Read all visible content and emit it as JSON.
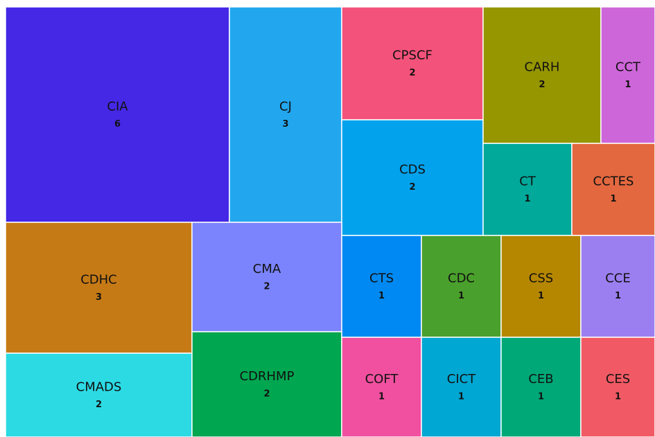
{
  "chart_data": {
    "type": "treemap",
    "categories": [
      "CIA",
      "CJ",
      "CPSCF",
      "CDS",
      "CARH",
      "CCT",
      "CT",
      "CCTES",
      "CDHC",
      "CMADS",
      "CMA",
      "CDRHMP",
      "CTS",
      "CDC",
      "CSS",
      "CCE",
      "COFT",
      "CICT",
      "CEB",
      "CES"
    ],
    "values": [
      6,
      3,
      2,
      2,
      2,
      1,
      1,
      1,
      3,
      2,
      2,
      2,
      1,
      1,
      1,
      1,
      1,
      1,
      1,
      1
    ],
    "colors": [
      "#4428e6",
      "#22a7ee",
      "#f3527a",
      "#03a2ec",
      "#959600",
      "#cd66d8",
      "#00a99a",
      "#e3683f",
      "#c67a16",
      "#2cdae4",
      "#7b84fc",
      "#00a650",
      "#0089f2",
      "#4aa02c",
      "#b58600",
      "#9b7ff0",
      "#f0509f",
      "#00a7d2",
      "#00a877",
      "#f15a64"
    ]
  }
}
